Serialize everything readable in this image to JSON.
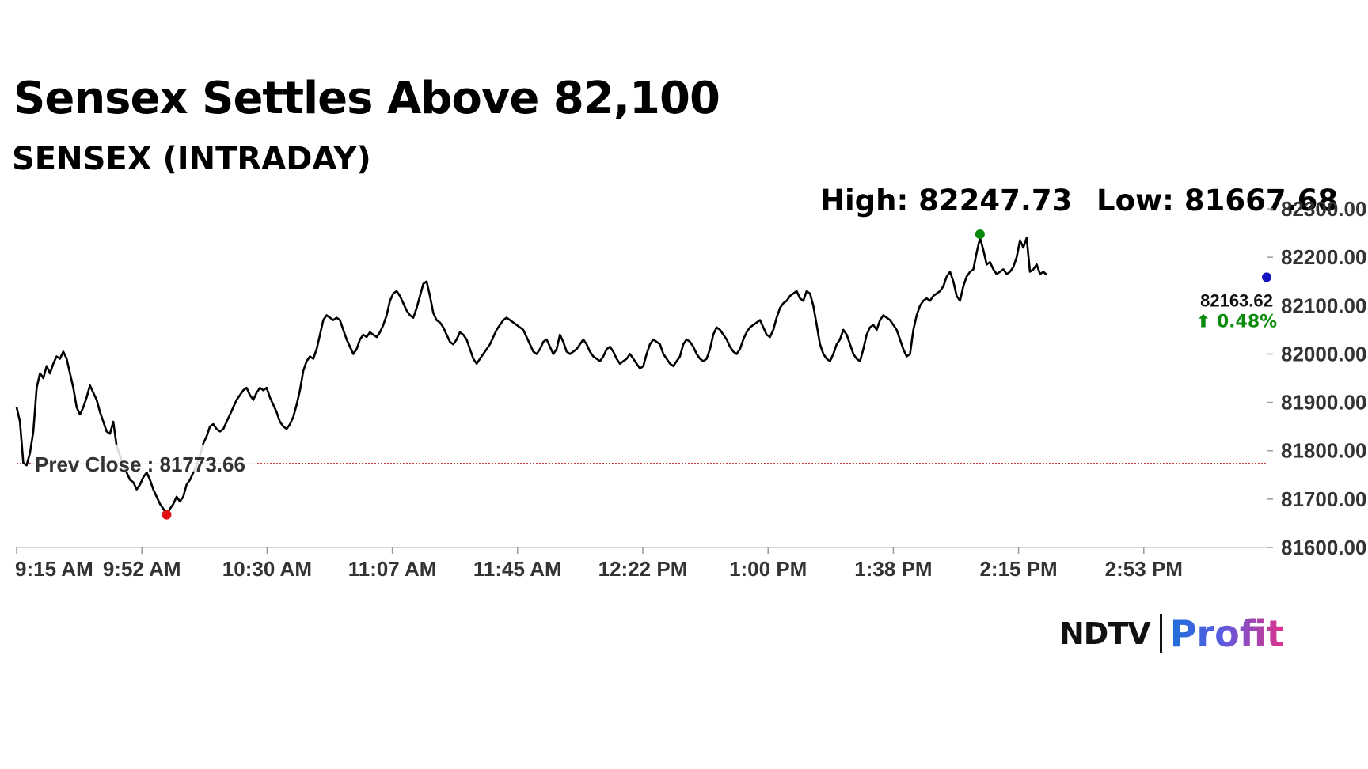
{
  "headline": "Sensex Settles Above 82,100",
  "subtitle": "SENSEX (INTRADAY)",
  "high_label": "High: 82247.73",
  "low_label": "Low: 81667.68",
  "brand": {
    "ndtv": "NDTV",
    "profit": "Profit"
  },
  "colors": {
    "line": "#000000",
    "high_dot": "#0a8a0a",
    "low_dot": "#e01010",
    "last_dot": "#1515c0",
    "prev_close_line": "#c02020",
    "change_up": "#0a8a0a"
  },
  "chart_data": {
    "type": "line",
    "title": "SENSEX (INTRADAY)",
    "x_tick_labels": [
      "9:15 AM",
      "9:52 AM",
      "10:30 AM",
      "11:07 AM",
      "11:45 AM",
      "12:22 PM",
      "1:00 PM",
      "1:38 PM",
      "2:15 PM",
      "2:53 PM"
    ],
    "y_tick_labels": [
      "82300.00",
      "82200.00",
      "82100.00",
      "82000.00",
      "81900.00",
      "81800.00",
      "81700.00",
      "81600.00"
    ],
    "ylim": [
      81600,
      82300
    ],
    "xlim_minutes": [
      0,
      375
    ],
    "prev_close": 81773.66,
    "prev_close_label": "Prev Close : 81773.66",
    "high": 82247.73,
    "low": 81667.68,
    "last_value": 82163.62,
    "last_label": "82163.62",
    "change_label": "⬆ 0.48%",
    "series": [
      {
        "name": "SENSEX",
        "points": [
          [
            0,
            81890
          ],
          [
            1,
            81860
          ],
          [
            2,
            81775
          ],
          [
            3,
            81770
          ],
          [
            4,
            81795
          ],
          [
            5,
            81840
          ],
          [
            6,
            81930
          ],
          [
            7,
            81960
          ],
          [
            8,
            81950
          ],
          [
            9,
            81975
          ],
          [
            10,
            81960
          ],
          [
            11,
            81980
          ],
          [
            12,
            81995
          ],
          [
            13,
            81990
          ],
          [
            14,
            82005
          ],
          [
            15,
            81990
          ],
          [
            16,
            81960
          ],
          [
            17,
            81930
          ],
          [
            18,
            81890
          ],
          [
            19,
            81875
          ],
          [
            20,
            81890
          ],
          [
            21,
            81910
          ],
          [
            22,
            81935
          ],
          [
            23,
            81920
          ],
          [
            24,
            81905
          ],
          [
            25,
            81880
          ],
          [
            26,
            81860
          ],
          [
            27,
            81840
          ],
          [
            28,
            81835
          ],
          [
            29,
            81860
          ],
          [
            30,
            81810
          ],
          [
            31,
            81790
          ],
          [
            32,
            81770
          ],
          [
            33,
            81755
          ],
          [
            34,
            81740
          ],
          [
            35,
            81735
          ],
          [
            36,
            81720
          ],
          [
            37,
            81730
          ],
          [
            38,
            81745
          ],
          [
            39,
            81755
          ],
          [
            40,
            81740
          ],
          [
            41,
            81720
          ],
          [
            42,
            81705
          ],
          [
            43,
            81690
          ],
          [
            44,
            81680
          ],
          [
            45,
            81668
          ],
          [
            46,
            81680
          ],
          [
            47,
            81690
          ],
          [
            48,
            81705
          ],
          [
            49,
            81695
          ],
          [
            50,
            81705
          ],
          [
            51,
            81730
          ],
          [
            52,
            81740
          ],
          [
            53,
            81755
          ],
          [
            54,
            81770
          ],
          [
            55,
            81790
          ],
          [
            56,
            81815
          ],
          [
            57,
            81830
          ],
          [
            58,
            81850
          ],
          [
            59,
            81855
          ],
          [
            60,
            81845
          ],
          [
            61,
            81840
          ],
          [
            62,
            81845
          ],
          [
            63,
            81860
          ],
          [
            64,
            81875
          ],
          [
            65,
            81890
          ],
          [
            66,
            81905
          ],
          [
            67,
            81915
          ],
          [
            68,
            81925
          ],
          [
            69,
            81930
          ],
          [
            70,
            81915
          ],
          [
            71,
            81905
          ],
          [
            72,
            81920
          ],
          [
            73,
            81930
          ],
          [
            74,
            81925
          ],
          [
            75,
            81930
          ],
          [
            76,
            81910
          ],
          [
            77,
            81895
          ],
          [
            78,
            81880
          ],
          [
            79,
            81860
          ],
          [
            80,
            81850
          ],
          [
            81,
            81845
          ],
          [
            82,
            81855
          ],
          [
            83,
            81870
          ],
          [
            84,
            81895
          ],
          [
            85,
            81925
          ],
          [
            86,
            81965
          ],
          [
            87,
            81985
          ],
          [
            88,
            81995
          ],
          [
            89,
            81990
          ],
          [
            90,
            82010
          ],
          [
            91,
            82040
          ],
          [
            92,
            82070
          ],
          [
            93,
            82080
          ],
          [
            94,
            82075
          ],
          [
            95,
            82070
          ],
          [
            96,
            82075
          ],
          [
            97,
            82070
          ],
          [
            98,
            82050
          ],
          [
            99,
            82030
          ],
          [
            100,
            82015
          ],
          [
            101,
            82000
          ],
          [
            102,
            82010
          ],
          [
            103,
            82030
          ],
          [
            104,
            82040
          ],
          [
            105,
            82035
          ],
          [
            106,
            82045
          ],
          [
            107,
            82040
          ],
          [
            108,
            82035
          ],
          [
            109,
            82045
          ],
          [
            110,
            82060
          ],
          [
            111,
            82080
          ],
          [
            112,
            82110
          ],
          [
            113,
            82125
          ],
          [
            114,
            82130
          ],
          [
            115,
            82120
          ],
          [
            116,
            82105
          ],
          [
            117,
            82090
          ],
          [
            118,
            82080
          ],
          [
            119,
            82075
          ],
          [
            120,
            82095
          ],
          [
            121,
            82120
          ],
          [
            122,
            82145
          ],
          [
            123,
            82150
          ],
          [
            124,
            82120
          ],
          [
            125,
            82085
          ],
          [
            126,
            82070
          ],
          [
            127,
            82065
          ],
          [
            128,
            82055
          ],
          [
            129,
            82040
          ],
          [
            130,
            82025
          ],
          [
            131,
            82020
          ],
          [
            132,
            82030
          ],
          [
            133,
            82045
          ],
          [
            134,
            82040
          ],
          [
            135,
            82030
          ],
          [
            136,
            82010
          ],
          [
            137,
            81990
          ],
          [
            138,
            81980
          ],
          [
            139,
            81990
          ],
          [
            140,
            82000
          ],
          [
            141,
            82010
          ],
          [
            142,
            82020
          ],
          [
            143,
            82035
          ],
          [
            144,
            82050
          ],
          [
            145,
            82060
          ],
          [
            146,
            82070
          ],
          [
            147,
            82075
          ],
          [
            148,
            82070
          ],
          [
            149,
            82065
          ],
          [
            150,
            82060
          ],
          [
            151,
            82055
          ],
          [
            152,
            82050
          ],
          [
            153,
            82035
          ],
          [
            154,
            82020
          ],
          [
            155,
            82005
          ],
          [
            156,
            82000
          ],
          [
            157,
            82010
          ],
          [
            158,
            82025
          ],
          [
            159,
            82030
          ],
          [
            160,
            82015
          ],
          [
            161,
            82000
          ],
          [
            162,
            82010
          ],
          [
            163,
            82040
          ],
          [
            164,
            82025
          ],
          [
            165,
            82005
          ],
          [
            166,
            82000
          ],
          [
            167,
            82005
          ],
          [
            168,
            82010
          ],
          [
            169,
            82020
          ],
          [
            170,
            82030
          ],
          [
            171,
            82020
          ],
          [
            172,
            82005
          ],
          [
            173,
            81995
          ],
          [
            174,
            81990
          ],
          [
            175,
            81985
          ],
          [
            176,
            81995
          ],
          [
            177,
            82010
          ],
          [
            178,
            82015
          ],
          [
            179,
            82005
          ],
          [
            180,
            81990
          ],
          [
            181,
            81980
          ],
          [
            182,
            81985
          ],
          [
            183,
            81990
          ],
          [
            184,
            82000
          ],
          [
            185,
            81990
          ],
          [
            186,
            81980
          ],
          [
            187,
            81970
          ],
          [
            188,
            81975
          ],
          [
            189,
            82000
          ],
          [
            190,
            82020
          ],
          [
            191,
            82030
          ],
          [
            192,
            82025
          ],
          [
            193,
            82020
          ],
          [
            194,
            82000
          ],
          [
            195,
            81990
          ],
          [
            196,
            81980
          ],
          [
            197,
            81975
          ],
          [
            198,
            81985
          ],
          [
            199,
            81995
          ],
          [
            200,
            82020
          ],
          [
            201,
            82030
          ],
          [
            202,
            82025
          ],
          [
            203,
            82015
          ],
          [
            204,
            82000
          ],
          [
            205,
            81990
          ],
          [
            206,
            81985
          ],
          [
            207,
            81990
          ],
          [
            208,
            82010
          ],
          [
            209,
            82040
          ],
          [
            210,
            82055
          ],
          [
            211,
            82050
          ],
          [
            212,
            82040
          ],
          [
            213,
            82030
          ],
          [
            214,
            82015
          ],
          [
            215,
            82005
          ],
          [
            216,
            82000
          ],
          [
            217,
            82010
          ],
          [
            218,
            82030
          ],
          [
            219,
            82045
          ],
          [
            220,
            82055
          ],
          [
            221,
            82060
          ],
          [
            222,
            82065
          ],
          [
            223,
            82070
          ],
          [
            224,
            82055
          ],
          [
            225,
            82040
          ],
          [
            226,
            82035
          ],
          [
            227,
            82050
          ],
          [
            228,
            82075
          ],
          [
            229,
            82095
          ],
          [
            230,
            82105
          ],
          [
            231,
            82110
          ],
          [
            232,
            82120
          ],
          [
            233,
            82125
          ],
          [
            234,
            82130
          ],
          [
            235,
            82115
          ],
          [
            236,
            82110
          ],
          [
            237,
            82130
          ],
          [
            238,
            82125
          ],
          [
            239,
            82100
          ],
          [
            240,
            82060
          ],
          [
            241,
            82020
          ],
          [
            242,
            82000
          ],
          [
            243,
            81990
          ],
          [
            244,
            81985
          ],
          [
            245,
            82000
          ],
          [
            246,
            82020
          ],
          [
            247,
            82030
          ],
          [
            248,
            82050
          ],
          [
            249,
            82040
          ],
          [
            250,
            82020
          ],
          [
            251,
            82000
          ],
          [
            252,
            81990
          ],
          [
            253,
            81985
          ],
          [
            254,
            82010
          ],
          [
            255,
            82040
          ],
          [
            256,
            82055
          ],
          [
            257,
            82060
          ],
          [
            258,
            82050
          ],
          [
            259,
            82070
          ],
          [
            260,
            82080
          ],
          [
            261,
            82075
          ],
          [
            262,
            82070
          ],
          [
            263,
            82060
          ],
          [
            264,
            82050
          ],
          [
            265,
            82030
          ],
          [
            266,
            82010
          ],
          [
            267,
            81995
          ],
          [
            268,
            82000
          ],
          [
            269,
            82050
          ],
          [
            270,
            82080
          ],
          [
            271,
            82100
          ],
          [
            272,
            82110
          ],
          [
            273,
            82115
          ],
          [
            274,
            82110
          ],
          [
            275,
            82120
          ],
          [
            276,
            82125
          ],
          [
            277,
            82130
          ],
          [
            278,
            82140
          ],
          [
            279,
            82160
          ],
          [
            280,
            82170
          ],
          [
            281,
            82150
          ],
          [
            282,
            82120
          ],
          [
            283,
            82110
          ],
          [
            284,
            82140
          ],
          [
            285,
            82160
          ],
          [
            286,
            82170
          ],
          [
            287,
            82175
          ],
          [
            288,
            82210
          ],
          [
            289,
            82240
          ],
          [
            290,
            82215
          ],
          [
            291,
            82185
          ],
          [
            292,
            82190
          ],
          [
            293,
            82175
          ],
          [
            294,
            82165
          ],
          [
            295,
            82170
          ],
          [
            296,
            82175
          ],
          [
            297,
            82165
          ],
          [
            298,
            82170
          ],
          [
            299,
            82180
          ],
          [
            300,
            82200
          ],
          [
            301,
            82235
          ],
          [
            302,
            82220
          ],
          [
            303,
            82240
          ],
          [
            304,
            82170
          ],
          [
            305,
            82175
          ],
          [
            306,
            82185
          ],
          [
            307,
            82165
          ],
          [
            308,
            82170
          ],
          [
            309,
            82163.62
          ]
        ]
      }
    ]
  }
}
